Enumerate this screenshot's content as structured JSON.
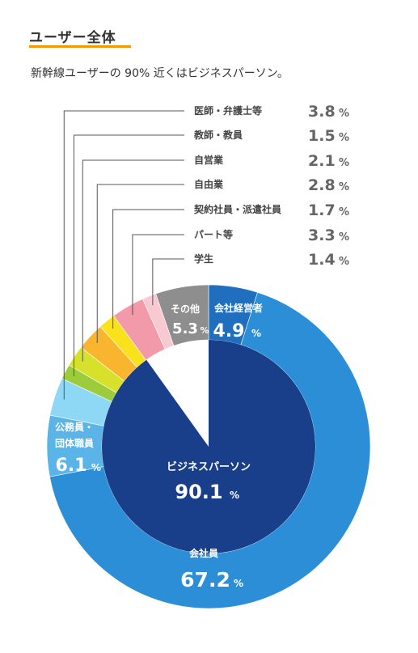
{
  "header": {
    "title": "ユーザー全体",
    "subtitle": "新幹線ユーザーの 90% 近くはビジネスパーソン。"
  },
  "colors": {
    "accent": "#f39800",
    "business_inner": "#1a3f8a",
    "employee": "#2b8ed6",
    "executive": "#1f6fbe",
    "civil_servant": "#5ab4e8",
    "other": "#8e8e8e"
  },
  "chart_data": {
    "type": "pie",
    "rings": [
      {
        "name": "ビジネスパーソン",
        "values": [
          {
            "label": "ビジネスパーソン",
            "value": 90.1,
            "unit": "%",
            "color": "#1a3f8a"
          }
        ]
      }
    ],
    "slices": [
      {
        "key": "executive",
        "label": "会社経営者",
        "value": 4.9,
        "unit": "%",
        "color": "#1f6fbe"
      },
      {
        "key": "employee",
        "label": "会社社員",
        "display_label": "会社員",
        "value": 67.2,
        "unit": "%",
        "color": "#2b8ed6"
      },
      {
        "key": "civil",
        "label": "公務員・団体職員",
        "label_lines": [
          "公務員・",
          "団体職員"
        ],
        "value": 6.1,
        "unit": "%",
        "color": "#5ab4e8"
      },
      {
        "key": "medical",
        "label": "医師・弁護士等",
        "value": 3.8,
        "unit": "%",
        "color": "#8ed8f5"
      },
      {
        "key": "teacher",
        "label": "教師・教員",
        "value": 1.5,
        "unit": "%",
        "color": "#9ccc3c"
      },
      {
        "key": "selfemployed",
        "label": "自営業",
        "value": 2.1,
        "unit": "%",
        "color": "#d7e02a"
      },
      {
        "key": "freelance",
        "label": "自由業",
        "value": 2.8,
        "unit": "%",
        "color": "#f8b52d"
      },
      {
        "key": "contract",
        "label": "契約社員・派遣社員",
        "value": 1.7,
        "unit": "%",
        "color": "#f9e21b"
      },
      {
        "key": "parttime",
        "label": "パート等",
        "value": 3.3,
        "unit": "%",
        "color": "#f29aaa"
      },
      {
        "key": "student",
        "label": "学生",
        "value": 1.4,
        "unit": "%",
        "color": "#f9c9d2"
      },
      {
        "key": "other",
        "label": "その他",
        "value": 5.3,
        "unit": "%",
        "color": "#8e8e8e"
      }
    ],
    "legend": [
      {
        "label": "医師・弁護士等",
        "value": "3.8",
        "unit": "%"
      },
      {
        "label": "教師・教員",
        "value": "1.5",
        "unit": "%"
      },
      {
        "label": "自営業",
        "value": "2.1",
        "unit": "%"
      },
      {
        "label": "自由業",
        "value": "2.8",
        "unit": "%"
      },
      {
        "label": "契約社員・派遣社員",
        "value": "1.7",
        "unit": "%"
      },
      {
        "label": "パート等",
        "value": "3.3",
        "unit": "%"
      },
      {
        "label": "学生",
        "value": "1.4",
        "unit": "%"
      }
    ],
    "inner_label": "ビジネスパーソン",
    "inner_value": "90.1",
    "inner_unit": "%"
  }
}
